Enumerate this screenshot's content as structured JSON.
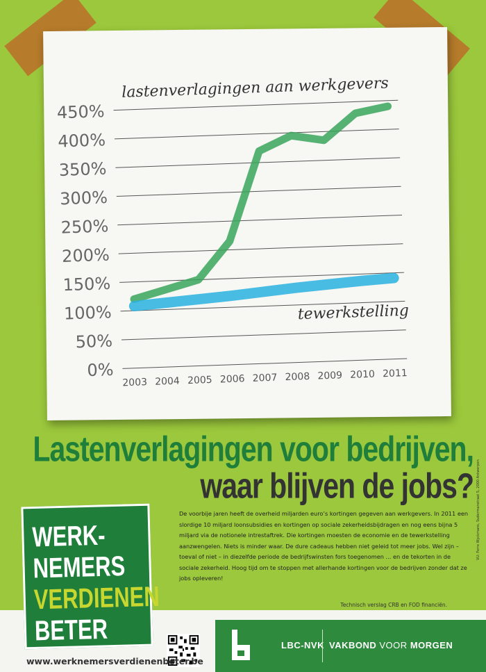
{
  "chart_data": {
    "type": "line",
    "x": [
      "2003",
      "2004",
      "2005",
      "2006",
      "2007",
      "2008",
      "2009",
      "2010",
      "2011"
    ],
    "yticks": [
      "0%",
      "50%",
      "100%",
      "150%",
      "200%",
      "250%",
      "300%",
      "350%",
      "400%",
      "450%"
    ],
    "ylim": [
      0,
      450
    ],
    "grid": true,
    "series": [
      {
        "name": "lastenverlagingen aan werkgevers",
        "color": "#3aa65a",
        "values": [
          120,
          135,
          150,
          215,
          370,
          395,
          385,
          430,
          440
        ]
      },
      {
        "name": "tewerkstelling",
        "color": "#2ab2e0",
        "values": [
          108,
          112,
          116,
          120,
          125,
          130,
          134,
          138,
          141
        ]
      }
    ]
  },
  "headline": {
    "line1": "Lastenverlagingen voor bedrijven,",
    "line2": "waar blijven de jobs?"
  },
  "body_text": "De voorbije jaren heeft de overheid miljarden euro’s kortingen gegeven aan werkgevers. In 2011 een slordige 10 miljard loonsubsidies en kortingen op sociale zekerheidsbijdragen en nog eens bijna 5 miljard via de notionele intrestaftrek. Die kortingen moesten de economie en de tewerkstelling aanzwengelen. Niets is minder waar. De dure cadeaus hebben niet geleid tot meer jobs. Wel zijn – toeval of niet – in diezelfde periode de bedrijfswinsten fors toegenomen ... en de tekorten in de sociale zekerheid. Hoog tijd om te stoppen met allerhande kortingen voor de bedrijven zonder dat ze jobs opleveren!",
  "source": "Technisch verslag CRB  en FOD financiën.",
  "vu": "VU: Ferre Wyckmans, Sudermanstraat 5, 2000 Antwerpen",
  "badge": {
    "line1": "WERK-",
    "line2": "NEMERS",
    "line3": "VERDIENEN",
    "line4": "BETER"
  },
  "website": "www.werknemersverdienenbeter.be",
  "logo": {
    "name": "LBC-NVK",
    "tag_part1": "VAKBOND",
    "tag_part2": "VOOR",
    "tag_part3": "MORGEN"
  },
  "colors": {
    "background": "#9bc83c",
    "brand_green": "#2e8b3e",
    "headline_green": "#1f7f3a",
    "badge_yellow": "#c8d730"
  }
}
